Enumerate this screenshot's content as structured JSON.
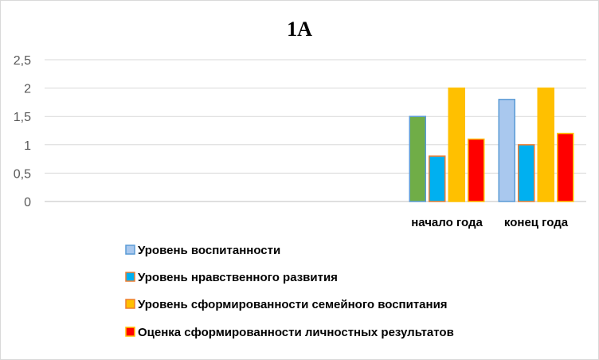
{
  "chart_data": {
    "type": "bar",
    "title": "1А",
    "xlabel": "",
    "ylabel": "",
    "ylim": [
      0,
      2.5
    ],
    "yticks": [
      "0",
      "0,5",
      "1",
      "1,5",
      "2",
      "2,5"
    ],
    "grid": true,
    "legend_position": "bottom",
    "categories": [
      "начало года",
      "конец года"
    ],
    "series": [
      {
        "name": "Уровень воспитанности",
        "values": [
          1.5,
          1.8
        ],
        "fill": [
          "#70AD47",
          "#A9C8EE"
        ],
        "stroke": "#5B9BD5"
      },
      {
        "name": "Уровень нравственного развития",
        "values": [
          0.8,
          1.0
        ],
        "fill": [
          "#00B0F0",
          "#00B0F0"
        ],
        "stroke": "#ED7D31"
      },
      {
        "name": "Уровень сформированности семейного воспитания",
        "values": [
          2.0,
          2.0
        ],
        "fill": [
          "#FFC000",
          "#FFC000"
        ],
        "stroke": "#FFC000"
      },
      {
        "name": "Оценка сформированности личностных результатов",
        "values": [
          1.1,
          1.2
        ],
        "fill": [
          "#FF0000",
          "#FF0000"
        ],
        "stroke": "#FFC000"
      }
    ],
    "legend_swatches": [
      {
        "fill": "#A9C8EE",
        "stroke": "#5B9BD5"
      },
      {
        "fill": "#00B0F0",
        "stroke": "#ED7D31"
      },
      {
        "fill": "#FFC000",
        "stroke": "#ED7D31"
      },
      {
        "fill": "#FF0000",
        "stroke": "#FFC000"
      }
    ],
    "colors": {
      "grid": "#d9d9d9",
      "axis": "#bfbfbf"
    }
  }
}
